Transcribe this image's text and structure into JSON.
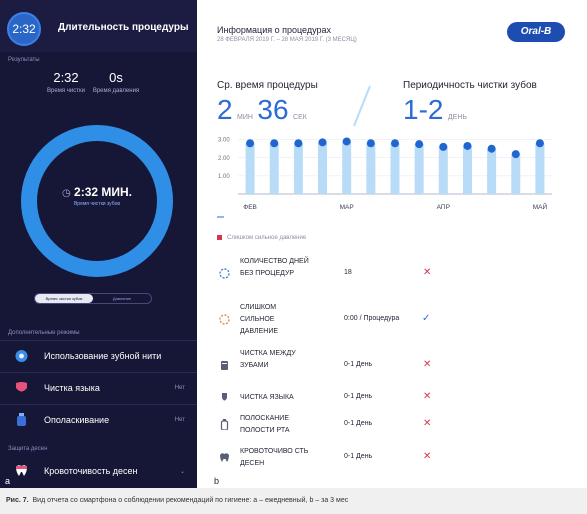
{
  "panel_a": {
    "timer": "2:32",
    "title": "Длительность процедуры",
    "results_label": "Результаты",
    "stats": [
      {
        "value": "2:32",
        "label": "Время чистки"
      },
      {
        "value": "0s",
        "label": "Время давления"
      }
    ],
    "ring": {
      "value": "2:32 МИН.",
      "caption": "Время чистки зубов",
      "ring_color": "#2f8fe6",
      "progress": 1.0
    },
    "toggle": [
      "Время чистки зубов",
      "Давление"
    ],
    "modes_label": "Дополнительные режимы",
    "modes": [
      {
        "label": "Использование зубной нити",
        "status": "",
        "icon": "floss-icon"
      },
      {
        "label": "Чистка языка",
        "status": "Нет",
        "icon": "tongue-icon"
      },
      {
        "label": "Ополаскивание",
        "status": "Нет",
        "icon": "rinse-icon"
      }
    ],
    "gums_label": "Защита десен",
    "gums_row": {
      "label": "Кровоточивость десен",
      "status": "",
      "icon": "gums-icon"
    },
    "letter": "a"
  },
  "panel_b": {
    "title": "Информация о процедурах",
    "dates": "28 ФЕВРАЛЯ 2019 Г. – 28 МАЯ 2019 Г. (3 МЕСЯЦ)",
    "logo": "Oral-B",
    "avg_label": "Ср. время процедуры",
    "avg_min": "2",
    "avg_min_unit": "МИН",
    "avg_sec": "36",
    "avg_sec_unit": "СЕК",
    "freq_label": "Периодичность чистки зубов",
    "freq_value": "1-2",
    "freq_unit": "ДЕНЬ",
    "legend": "Слишком сильное давление",
    "rows": [
      {
        "label": "КОЛИЧЕСТВО ДНЕЙ БЕЗ ПРОЦЕДУР",
        "value": "18",
        "mark": "✕",
        "icon": "calendar-icon"
      },
      {
        "label": "СЛИШКОМ СИЛЬНОЕ ДАВЛЕНИЕ",
        "value": "0:00 / Процедура",
        "mark": "✓",
        "icon": "pressure-icon"
      },
      {
        "label": "ЧИСТКА МЕЖДУ ЗУБАМИ",
        "value": "0-1 День",
        "mark": "✕",
        "icon": "floss-icon"
      },
      {
        "label": "ЧИСТКА ЯЗЫКА",
        "value": "0-1 День",
        "mark": "✕",
        "icon": "tongue-icon"
      },
      {
        "label": "ПОЛОСКАНИЕ ПОЛОСТИ РТА",
        "value": "0-1 День",
        "mark": "✕",
        "icon": "rinse-icon"
      },
      {
        "label": "КРОВОТОЧИВО СТЬ ДЕСЕН",
        "value": "0-1 День",
        "mark": "✕",
        "icon": "gums-icon"
      }
    ],
    "letter": "b"
  },
  "chart_data": {
    "type": "bar",
    "y_ticks": [
      "3.00",
      "2.00",
      "1.00"
    ],
    "ylim": [
      0,
      3.2
    ],
    "x_labels": [
      "ФЕВ",
      "МАР",
      "АПР",
      "МАЙ"
    ],
    "values": [
      2.8,
      2.8,
      2.8,
      2.85,
      2.9,
      2.8,
      2.8,
      2.75,
      2.6,
      2.65,
      2.5,
      2.2,
      2.8
    ],
    "bar_color": "#b8dcf7",
    "dot_color": "#1f66d1"
  },
  "caption": {
    "label": "Рис. 7.",
    "text": "Вид отчета со смартфона о соблюдении рекомендаций по гигиене: a – ежедневный, b – за 3 мес"
  }
}
